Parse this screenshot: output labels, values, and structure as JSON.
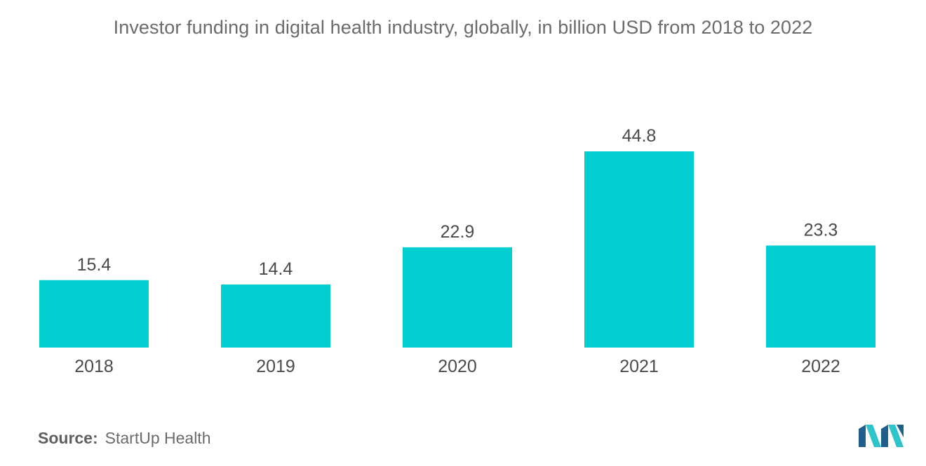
{
  "chart_data": {
    "type": "bar",
    "title": "Investor funding in digital health industry, globally, in billion USD from 2018 to 2022",
    "categories": [
      "2018",
      "2019",
      "2020",
      "2021",
      "2022"
    ],
    "values": [
      15.4,
      14.4,
      22.9,
      44.8,
      23.3
    ],
    "value_labels": [
      "15.4",
      "14.4",
      "22.9",
      "44.8",
      "23.3"
    ],
    "xlabel": "",
    "ylabel": "",
    "ylim": [
      0,
      50
    ],
    "grid": false,
    "bar_color": "#00ced1"
  },
  "source": {
    "label": "Source:",
    "text": "StartUp Health"
  },
  "logo": {
    "icon": "mordor-intelligence-logo-icon",
    "colors": [
      "#1f5f8b",
      "#2fc4cc"
    ]
  }
}
